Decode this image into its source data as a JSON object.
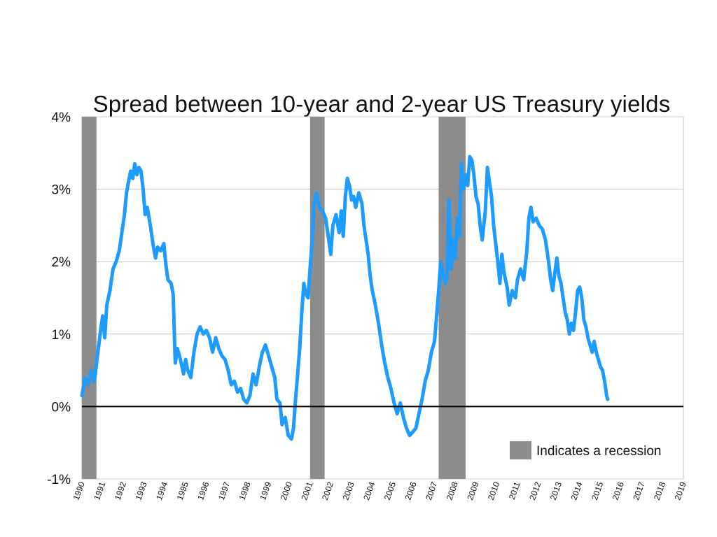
{
  "chart_data": {
    "type": "line",
    "title": "Spread between 10-year and 2-year US Treasury yields",
    "xlabel": "",
    "ylabel": "",
    "xlim": [
      1990,
      2019
    ],
    "ylim": [
      -1,
      4
    ],
    "y_ticks": [
      "-1%",
      "0%",
      "1%",
      "2%",
      "3%",
      "4%"
    ],
    "y_tick_values": [
      -1,
      0,
      1,
      2,
      3,
      4
    ],
    "x_ticks": [
      "1990",
      "1991",
      "1992",
      "1993",
      "1994",
      "1995",
      "1996",
      "1997",
      "1998",
      "1999",
      "2000",
      "2001",
      "2002",
      "2003",
      "2004",
      "2005",
      "2006",
      "2007",
      "2008",
      "2009",
      "2010",
      "2011",
      "2012",
      "2013",
      "2014",
      "2015",
      "2016",
      "2017",
      "2018",
      "2019"
    ],
    "grid": "horizontal",
    "zero_line": 0,
    "legend": {
      "position": "bottom-right",
      "label": "Indicates a recession"
    },
    "recessions": [
      {
        "start": 1990.0,
        "end": 1990.7
      },
      {
        "start": 2001.0,
        "end": 2001.7
      },
      {
        "start": 2007.2,
        "end": 2008.5
      }
    ],
    "series": [
      {
        "color": "#1e9bff",
        "points": [
          [
            1990.0,
            0.15
          ],
          [
            1990.15,
            0.4
          ],
          [
            1990.3,
            0.3
          ],
          [
            1990.45,
            0.5
          ],
          [
            1990.6,
            0.35
          ],
          [
            1990.75,
            0.7
          ],
          [
            1990.9,
            1.05
          ],
          [
            1991.0,
            1.25
          ],
          [
            1991.1,
            0.95
          ],
          [
            1991.2,
            1.4
          ],
          [
            1991.35,
            1.6
          ],
          [
            1991.5,
            1.9
          ],
          [
            1991.65,
            2.0
          ],
          [
            1991.8,
            2.15
          ],
          [
            1991.95,
            2.45
          ],
          [
            1992.05,
            2.65
          ],
          [
            1992.15,
            2.95
          ],
          [
            1992.25,
            3.1
          ],
          [
            1992.35,
            3.25
          ],
          [
            1992.45,
            3.15
          ],
          [
            1992.55,
            3.35
          ],
          [
            1992.65,
            3.2
          ],
          [
            1992.75,
            3.3
          ],
          [
            1992.85,
            3.25
          ],
          [
            1992.95,
            3.0
          ],
          [
            1993.05,
            2.65
          ],
          [
            1993.15,
            2.75
          ],
          [
            1993.3,
            2.5
          ],
          [
            1993.45,
            2.2
          ],
          [
            1993.55,
            2.05
          ],
          [
            1993.65,
            2.2
          ],
          [
            1993.8,
            2.15
          ],
          [
            1993.95,
            2.25
          ],
          [
            1994.05,
            1.95
          ],
          [
            1994.15,
            1.75
          ],
          [
            1994.3,
            1.7
          ],
          [
            1994.4,
            1.55
          ],
          [
            1994.5,
            0.6
          ],
          [
            1994.6,
            0.8
          ],
          [
            1994.75,
            0.65
          ],
          [
            1994.9,
            0.45
          ],
          [
            1995.0,
            0.65
          ],
          [
            1995.1,
            0.5
          ],
          [
            1995.25,
            0.4
          ],
          [
            1995.4,
            0.75
          ],
          [
            1995.55,
            1.0
          ],
          [
            1995.7,
            1.1
          ],
          [
            1995.85,
            1.0
          ],
          [
            1996.0,
            1.05
          ],
          [
            1996.15,
            0.95
          ],
          [
            1996.3,
            0.75
          ],
          [
            1996.45,
            0.95
          ],
          [
            1996.6,
            0.8
          ],
          [
            1996.75,
            0.7
          ],
          [
            1996.9,
            0.65
          ],
          [
            1997.05,
            0.5
          ],
          [
            1997.2,
            0.3
          ],
          [
            1997.35,
            0.35
          ],
          [
            1997.5,
            0.2
          ],
          [
            1997.65,
            0.25
          ],
          [
            1997.8,
            0.1
          ],
          [
            1997.95,
            0.05
          ],
          [
            1998.1,
            0.15
          ],
          [
            1998.25,
            0.45
          ],
          [
            1998.4,
            0.3
          ],
          [
            1998.55,
            0.55
          ],
          [
            1998.7,
            0.75
          ],
          [
            1998.85,
            0.85
          ],
          [
            1999.0,
            0.7
          ],
          [
            1999.15,
            0.55
          ],
          [
            1999.3,
            0.4
          ],
          [
            1999.4,
            0.1
          ],
          [
            1999.55,
            0.05
          ],
          [
            1999.65,
            -0.25
          ],
          [
            1999.8,
            -0.15
          ],
          [
            1999.95,
            -0.4
          ],
          [
            2000.1,
            -0.45
          ],
          [
            2000.2,
            -0.3
          ],
          [
            2000.3,
            0.1
          ],
          [
            2000.4,
            0.45
          ],
          [
            2000.5,
            0.8
          ],
          [
            2000.6,
            1.3
          ],
          [
            2000.7,
            1.7
          ],
          [
            2000.8,
            1.55
          ],
          [
            2000.9,
            1.5
          ],
          [
            2001.0,
            1.9
          ],
          [
            2001.1,
            2.3
          ],
          [
            2001.2,
            2.8
          ],
          [
            2001.3,
            2.95
          ],
          [
            2001.45,
            2.75
          ],
          [
            2001.6,
            2.7
          ],
          [
            2001.75,
            2.6
          ],
          [
            2001.9,
            2.3
          ],
          [
            2002.0,
            2.1
          ],
          [
            2002.1,
            2.5
          ],
          [
            2002.25,
            2.65
          ],
          [
            2002.4,
            2.4
          ],
          [
            2002.5,
            2.7
          ],
          [
            2002.6,
            2.35
          ],
          [
            2002.7,
            2.9
          ],
          [
            2002.8,
            3.15
          ],
          [
            2002.9,
            3.05
          ],
          [
            2003.0,
            2.85
          ],
          [
            2003.1,
            2.9
          ],
          [
            2003.2,
            2.75
          ],
          [
            2003.35,
            2.95
          ],
          [
            2003.5,
            2.8
          ],
          [
            2003.6,
            2.5
          ],
          [
            2003.7,
            2.3
          ],
          [
            2003.8,
            2.1
          ],
          [
            2003.9,
            1.8
          ],
          [
            2004.0,
            1.6
          ],
          [
            2004.15,
            1.4
          ],
          [
            2004.3,
            1.15
          ],
          [
            2004.45,
            0.85
          ],
          [
            2004.6,
            0.6
          ],
          [
            2004.75,
            0.4
          ],
          [
            2004.9,
            0.25
          ],
          [
            2005.05,
            0.05
          ],
          [
            2005.2,
            -0.1
          ],
          [
            2005.35,
            0.05
          ],
          [
            2005.5,
            -0.15
          ],
          [
            2005.65,
            -0.3
          ],
          [
            2005.8,
            -0.4
          ],
          [
            2005.95,
            -0.35
          ],
          [
            2006.1,
            -0.3
          ],
          [
            2006.25,
            -0.1
          ],
          [
            2006.4,
            0.1
          ],
          [
            2006.55,
            0.35
          ],
          [
            2006.7,
            0.5
          ],
          [
            2006.85,
            0.75
          ],
          [
            2007.0,
            0.9
          ],
          [
            2007.1,
            1.25
          ],
          [
            2007.2,
            1.6
          ],
          [
            2007.3,
            2.0
          ],
          [
            2007.4,
            1.85
          ],
          [
            2007.5,
            1.7
          ],
          [
            2007.6,
            1.75
          ],
          [
            2007.7,
            2.85
          ],
          [
            2007.8,
            1.9
          ],
          [
            2007.9,
            2.3
          ],
          [
            2008.0,
            2.05
          ],
          [
            2008.1,
            2.6
          ],
          [
            2008.2,
            2.35
          ],
          [
            2008.3,
            3.35
          ],
          [
            2008.4,
            3.0
          ],
          [
            2008.5,
            3.2
          ],
          [
            2008.6,
            3.05
          ],
          [
            2008.7,
            3.45
          ],
          [
            2008.8,
            3.4
          ],
          [
            2008.9,
            3.2
          ],
          [
            2009.0,
            2.9
          ],
          [
            2009.1,
            2.8
          ],
          [
            2009.2,
            2.5
          ],
          [
            2009.3,
            2.3
          ],
          [
            2009.45,
            2.7
          ],
          [
            2009.55,
            3.3
          ],
          [
            2009.65,
            3.1
          ],
          [
            2009.75,
            2.9
          ],
          [
            2009.85,
            2.5
          ],
          [
            2009.95,
            2.25
          ],
          [
            2010.05,
            2.0
          ],
          [
            2010.15,
            1.7
          ],
          [
            2010.25,
            2.1
          ],
          [
            2010.35,
            1.85
          ],
          [
            2010.5,
            1.65
          ],
          [
            2010.6,
            1.4
          ],
          [
            2010.75,
            1.6
          ],
          [
            2010.9,
            1.5
          ],
          [
            2011.0,
            1.75
          ],
          [
            2011.15,
            1.9
          ],
          [
            2011.3,
            1.75
          ],
          [
            2011.45,
            2.15
          ],
          [
            2011.55,
            2.6
          ],
          [
            2011.65,
            2.75
          ],
          [
            2011.75,
            2.55
          ],
          [
            2011.9,
            2.6
          ],
          [
            2012.05,
            2.5
          ],
          [
            2012.2,
            2.45
          ],
          [
            2012.35,
            2.3
          ],
          [
            2012.5,
            2.0
          ],
          [
            2012.6,
            1.75
          ],
          [
            2012.7,
            1.6
          ],
          [
            2012.8,
            1.85
          ],
          [
            2012.9,
            2.05
          ],
          [
            2013.0,
            1.8
          ],
          [
            2013.1,
            1.7
          ],
          [
            2013.2,
            1.5
          ],
          [
            2013.3,
            1.3
          ],
          [
            2013.4,
            1.2
          ],
          [
            2013.5,
            1.0
          ],
          [
            2013.6,
            1.15
          ],
          [
            2013.7,
            1.05
          ],
          [
            2013.8,
            1.3
          ],
          [
            2013.9,
            1.6
          ],
          [
            2014.0,
            1.65
          ],
          [
            2014.1,
            1.5
          ],
          [
            2014.2,
            1.2
          ],
          [
            2014.3,
            1.1
          ],
          [
            2014.4,
            0.95
          ],
          [
            2014.5,
            0.85
          ],
          [
            2014.6,
            0.75
          ],
          [
            2014.7,
            0.9
          ],
          [
            2014.8,
            0.75
          ],
          [
            2014.9,
            0.65
          ],
          [
            2015.0,
            0.55
          ],
          [
            2015.1,
            0.5
          ],
          [
            2015.2,
            0.35
          ],
          [
            2015.3,
            0.15
          ],
          [
            2015.35,
            0.1
          ]
        ]
      }
    ]
  }
}
